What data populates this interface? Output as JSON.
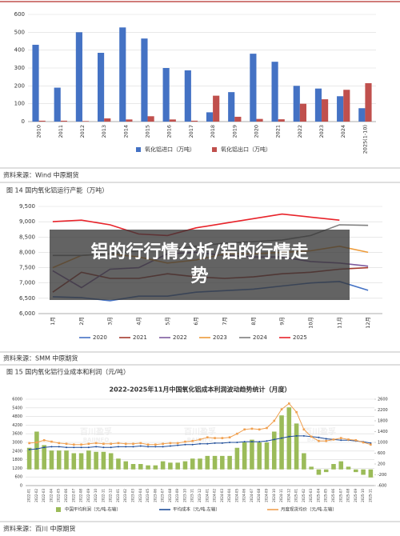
{
  "chart_data": [
    {
      "type": "bar",
      "categories": [
        "2010",
        "2011",
        "2012",
        "2013",
        "2014",
        "2015",
        "2016",
        "2017",
        "2018",
        "2019",
        "2020",
        "2021",
        "2022",
        "2023",
        "2024",
        "2025(1-10)"
      ],
      "series": [
        {
          "name": "氧化铝进口（万吨）",
          "color": "#4472c4",
          "values": [
            430,
            190,
            500,
            385,
            527,
            465,
            300,
            287,
            52,
            165,
            380,
            335,
            200,
            185,
            142,
            75
          ]
        },
        {
          "name": "氧化铝出口（万吨）",
          "color": "#c0504d",
          "values": [
            5,
            5,
            3,
            18,
            12,
            30,
            12,
            5,
            145,
            27,
            15,
            13,
            100,
            125,
            178,
            215
          ]
        }
      ],
      "ylim": [
        0,
        600
      ],
      "yticks": [
        0,
        100,
        200,
        300,
        400,
        500,
        600
      ],
      "grid": true
    },
    {
      "type": "line",
      "categories": [
        "1月",
        "2月",
        "3月",
        "4月",
        "5月",
        "6月",
        "7月",
        "8月",
        "9月",
        "10月",
        "11月",
        "12月"
      ],
      "series": [
        {
          "name": "2020",
          "color": "#4472c4",
          "values": [
            6550,
            6520,
            6420,
            6570,
            6570,
            6700,
            6750,
            6800,
            6900,
            7000,
            7050,
            6760
          ]
        },
        {
          "name": "2021",
          "color": "#a5392d",
          "values": [
            6700,
            7350,
            7150,
            7150,
            7300,
            7200,
            7150,
            7200,
            7300,
            7350,
            7450,
            7500
          ]
        },
        {
          "name": "2022",
          "color": "#7e5b9e",
          "values": [
            7400,
            6850,
            7450,
            7500,
            7950,
            8000,
            7900,
            7850,
            7850,
            7700,
            7650,
            7550
          ]
        },
        {
          "name": "2023",
          "color": "#ed9b3a",
          "values": [
            7500,
            7900,
            7950,
            7850,
            7650,
            7750,
            7950,
            7950,
            8000,
            8050,
            8200,
            8000
          ]
        },
        {
          "name": "2024",
          "color": "#7f7f7f",
          "values": [
            7900,
            7900,
            7950,
            8050,
            8100,
            8200,
            8300,
            8350,
            8400,
            8550,
            8900,
            8880
          ]
        },
        {
          "name": "2025",
          "color": "#e8232a",
          "values": [
            9000,
            9050,
            8900,
            8600,
            8550,
            8800,
            8950,
            9100,
            9250,
            9150,
            9050,
            null
          ]
        }
      ],
      "ylim": [
        6000,
        9500
      ],
      "yticks": [
        {
          "value": 6000,
          "label": "6,000"
        },
        {
          "value": 6500,
          "label": "6,500"
        },
        {
          "value": 7000,
          "label": "7,000"
        },
        {
          "value": 7500,
          "label": "7,500"
        },
        {
          "value": 8000,
          "label": "8,000"
        },
        {
          "value": 8500,
          "label": "8,500"
        },
        {
          "value": 9000,
          "label": "9,000"
        },
        {
          "value": 9500,
          "label": "9,500"
        }
      ],
      "grid": true
    },
    {
      "type": "combo",
      "title": "2022-2025年11月中国氧化铝成本利润波动趋势统计（月度）",
      "watermark": [
        "百川盈孚",
        "BAIINFO"
      ],
      "categories": [
        "2022-01",
        "2022-02",
        "2022-03",
        "2022-04",
        "2022-05",
        "2022-06",
        "2022-07",
        "2022-08",
        "2022-09",
        "2022-10",
        "2022-11",
        "2022-12",
        "2023-01",
        "2023-02",
        "2023-03",
        "2023-04",
        "2023-05",
        "2023-06",
        "2023-07",
        "2023-08",
        "2023-09",
        "2023-10",
        "2023-11",
        "2023-12",
        "2024-01",
        "2024-02",
        "2024-03",
        "2024-04",
        "2024-05",
        "2024-06",
        "2024-07",
        "2024-08",
        "2024-09",
        "2024-10",
        "2024-11",
        "2024-12",
        "2025-01",
        "2025-02",
        "2025-03",
        "2025-04",
        "2025-05",
        "2025-06",
        "2025-07",
        "2025-08",
        "2025-09",
        "2025-10",
        "2025-11"
      ],
      "series": [
        {
          "name": "中国平均利润（元/吨-右轴）",
          "type": "bar",
          "axis": "y2",
          "color": "#9bbb59",
          "values": [
            800,
            1400,
            900,
            700,
            700,
            700,
            600,
            600,
            700,
            650,
            650,
            600,
            400,
            300,
            200,
            200,
            150,
            150,
            300,
            250,
            250,
            300,
            400,
            400,
            500,
            500,
            500,
            500,
            800,
            1000,
            1100,
            1000,
            1000,
            1400,
            2000,
            2300,
            1700,
            600,
            100,
            -200,
            -100,
            200,
            300,
            100,
            -100,
            -200,
            -300
          ]
        },
        {
          "name": "平均成本（元/吨-左轴）",
          "type": "line",
          "color": "#1f4e9b",
          "values": [
            2500,
            2550,
            2650,
            2700,
            2700,
            2650,
            2650,
            2650,
            2650,
            2700,
            2650,
            2650,
            2700,
            2700,
            2700,
            2750,
            2700,
            2700,
            2700,
            2750,
            2800,
            2850,
            2850,
            2900,
            2900,
            2950,
            2950,
            3000,
            3000,
            3050,
            3050,
            3050,
            3100,
            3200,
            3300,
            3400,
            3450,
            3450,
            3400,
            3350,
            3250,
            3200,
            3150,
            3150,
            3100,
            3050,
            2950
          ]
        },
        {
          "name": "月度现货均价（元/吨-左轴）",
          "type": "line",
          "color": "#f0a050",
          "values": [
            2950,
            3000,
            3150,
            3050,
            2950,
            2900,
            2850,
            2850,
            2900,
            2950,
            2900,
            2900,
            2950,
            2900,
            2900,
            2950,
            2850,
            2850,
            2900,
            2950,
            2950,
            3050,
            3100,
            3200,
            3350,
            3300,
            3300,
            3350,
            3600,
            3900,
            3950,
            3900,
            4000,
            4500,
            5300,
            5700,
            5100,
            3900,
            3400,
            3100,
            3100,
            3200,
            3300,
            3200,
            3150,
            3000,
            2850
          ]
        }
      ],
      "ylim": [
        0,
        6000
      ],
      "yticks": [
        0,
        600,
        1200,
        1800,
        2400,
        3000,
        3600,
        4200,
        4800,
        5400,
        6000
      ],
      "y2lim": [
        -600,
        2600
      ],
      "y2ticks": [
        -600,
        -200,
        200,
        600,
        1000,
        1400,
        1800,
        2200,
        2600
      ],
      "grid": true
    }
  ],
  "notes": {
    "source1": "资料来源：Wind 中原期货",
    "figure14": "图 14 国内氧化铝运行产能（万吨）",
    "source2": "资料来源：SMM 中原期货",
    "figure15": "图 15 国内氧化铝行业成本和利润（元/吨）",
    "source3": "资料来源：百川 中原期货",
    "banner": "铝的行行情分析/铝的行情走势"
  }
}
